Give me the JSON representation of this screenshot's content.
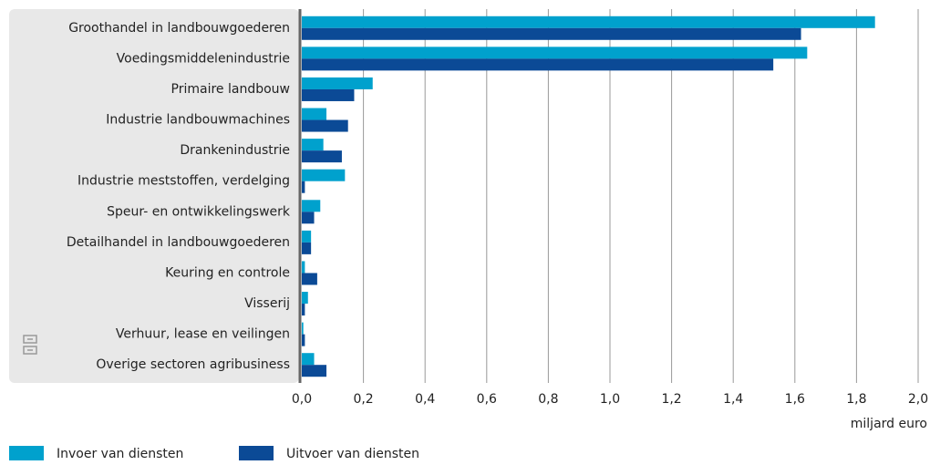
{
  "chart_data": {
    "type": "hbar",
    "categories": [
      "Groothandel in landbouwgoederen",
      "Voedingsmiddelenindustrie",
      "Primaire landbouw",
      "Industrie landbouwmachines",
      "Drankenindustrie",
      "Industrie meststoffen, verdelging",
      "Speur- en ontwikkelingswerk",
      "Detailhandel in landbouwgoederen",
      "Keuring en controle",
      "Visserij",
      "Verhuur, lease en veilingen",
      "Overige sectoren agribusiness"
    ],
    "series": [
      {
        "name": "Invoer van diensten",
        "color": "#00a1cd",
        "values": [
          1.86,
          1.64,
          0.23,
          0.08,
          0.07,
          0.14,
          0.06,
          0.03,
          0.01,
          0.02,
          0.005,
          0.04
        ]
      },
      {
        "name": "Uitvoer van diensten",
        "color": "#0b4a96",
        "values": [
          1.62,
          1.53,
          0.17,
          0.15,
          0.13,
          0.01,
          0.04,
          0.03,
          0.05,
          0.01,
          0.01,
          0.08
        ]
      }
    ],
    "xlabel": "miljard euro",
    "xlim": [
      0,
      2.0
    ],
    "xticks": [
      {
        "value": 0,
        "label": "0,0"
      },
      {
        "value": 0.2,
        "label": "0,2"
      },
      {
        "value": 0.4,
        "label": "0,4"
      },
      {
        "value": 0.6,
        "label": "0,6"
      },
      {
        "value": 0.8,
        "label": "0,8"
      },
      {
        "value": 1.0,
        "label": "1,0"
      },
      {
        "value": 1.2,
        "label": "1,2"
      },
      {
        "value": 1.4,
        "label": "1,4"
      },
      {
        "value": 1.6,
        "label": "1,6"
      },
      {
        "value": 1.8,
        "label": "1,8"
      },
      {
        "value": 2.0,
        "label": "2,0"
      }
    ],
    "grid": true,
    "legend": "bottom-left"
  }
}
